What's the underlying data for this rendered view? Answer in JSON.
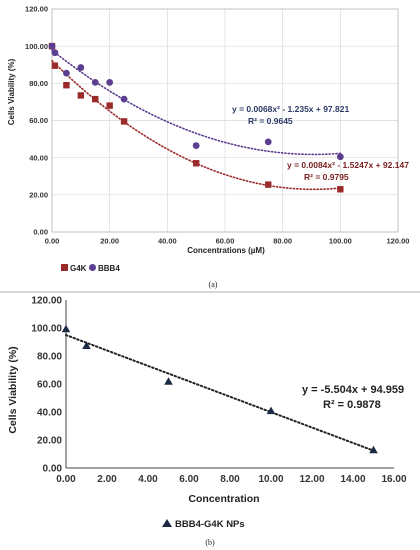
{
  "chart_data": [
    {
      "type": "scatter",
      "panel_label": "(a)",
      "xlabel": "Concentrations (µM)",
      "ylabel": "Cells Viability (%)",
      "xlim": [
        0,
        120
      ],
      "ylim": [
        0,
        120
      ],
      "x_ticks": [
        "0.00",
        "20.00",
        "40.00",
        "60.00",
        "80.00",
        "100.00",
        "120.00"
      ],
      "y_ticks": [
        "0.00",
        "20.00",
        "40.00",
        "60.00",
        "80.00",
        "100.00",
        "120.00"
      ],
      "grid": true,
      "legend_position": "bottom-left",
      "series": [
        {
          "name": "G4K",
          "color": "#9b2a2a",
          "marker": "square",
          "x": [
            0,
            1,
            5,
            10,
            15,
            20,
            25,
            50,
            75,
            100
          ],
          "y": [
            100,
            89.5,
            79,
            73.5,
            71.5,
            68,
            59.5,
            37,
            25.5,
            23
          ],
          "trendline": {
            "type": "poly2",
            "coeffs": [
              0.0084,
              -1.5247,
              92.147
            ]
          },
          "equation": "y = 0.0084x² - 1.5247x + 92.147",
          "r2": "R² = 0.9795"
        },
        {
          "name": "BBB4",
          "color": "#5b3e8f",
          "marker": "circle",
          "x": [
            0,
            1,
            5,
            10,
            15,
            20,
            25,
            50,
            75,
            100
          ],
          "y": [
            100,
            96.5,
            85.5,
            88.5,
            80.5,
            80.5,
            71.5,
            46.5,
            48.5,
            40.5
          ],
          "trendline": {
            "type": "poly2",
            "coeffs": [
              0.0068,
              -1.235,
              97.821
            ]
          },
          "equation": "y = 0.0068x² - 1.235x + 97.821",
          "r2": "R² = 0.9645"
        }
      ]
    },
    {
      "type": "scatter",
      "panel_label": "(b)",
      "xlabel": "Concentration",
      "ylabel": "Cells Viability (%)",
      "xlim": [
        0,
        16
      ],
      "ylim": [
        0,
        120
      ],
      "x_ticks": [
        "0.00",
        "2.00",
        "4.00",
        "6.00",
        "8.00",
        "10.00",
        "12.00",
        "14.00",
        "16.00"
      ],
      "y_ticks": [
        "0.00",
        "20.00",
        "40.00",
        "60.00",
        "80.00",
        "100.00",
        "120.00"
      ],
      "grid": false,
      "legend_position": "bottom-center",
      "series": [
        {
          "name": "BBB4-G4K NPs",
          "color": "#1c2a44",
          "marker": "triangle",
          "x": [
            0,
            1,
            5,
            10,
            15
          ],
          "y": [
            99.5,
            87.5,
            62,
            41,
            13
          ],
          "trendline": {
            "type": "linear",
            "coeffs": [
              -5.504,
              94.959
            ]
          },
          "equation": "y = -5.504x + 94.959",
          "r2": "R² = 0.9878"
        }
      ]
    }
  ]
}
